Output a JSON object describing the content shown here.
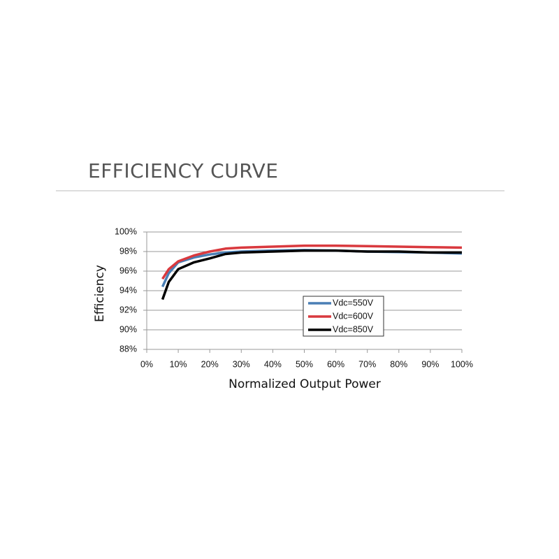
{
  "chart_data": {
    "type": "line",
    "title": "EFFICIENCY CURVE",
    "x_label": "Normalized Output Power",
    "y_label": "Efficiency",
    "x": [
      5,
      7,
      10,
      15,
      20,
      25,
      30,
      40,
      50,
      60,
      70,
      80,
      90,
      100
    ],
    "series": [
      {
        "name": "Vdc=550V",
        "color": "#4a7fb5",
        "values": [
          94.4,
          95.8,
          96.9,
          97.4,
          97.7,
          97.9,
          98.0,
          98.1,
          98.15,
          98.1,
          98.0,
          97.95,
          97.9,
          97.8
        ]
      },
      {
        "name": "Vdc=600V",
        "color": "#d9393e",
        "values": [
          95.2,
          96.2,
          97.0,
          97.6,
          98.0,
          98.3,
          98.4,
          98.5,
          98.6,
          98.6,
          98.55,
          98.5,
          98.45,
          98.4
        ]
      },
      {
        "name": "Vdc=850V",
        "color": "#000000",
        "values": [
          93.1,
          94.9,
          96.2,
          96.9,
          97.3,
          97.75,
          97.9,
          98.0,
          98.1,
          98.1,
          98.0,
          98.0,
          97.9,
          97.9
        ]
      }
    ],
    "xlim": [
      0,
      100
    ],
    "xticks": [
      {
        "value": 0,
        "label": "0%"
      },
      {
        "value": 10,
        "label": "10%"
      },
      {
        "value": 20,
        "label": "20%"
      },
      {
        "value": 30,
        "label": "30%"
      },
      {
        "value": 40,
        "label": "40%"
      },
      {
        "value": 50,
        "label": "50%"
      },
      {
        "value": 60,
        "label": "60%"
      },
      {
        "value": 70,
        "label": "70%"
      },
      {
        "value": 80,
        "label": "80%"
      },
      {
        "value": 90,
        "label": "90%"
      },
      {
        "value": 100,
        "label": "100%"
      }
    ],
    "ylim": [
      88,
      100
    ],
    "yticks": [
      {
        "value": 88,
        "label": "88%"
      },
      {
        "value": 90,
        "label": "90%"
      },
      {
        "value": 92,
        "label": "92%"
      },
      {
        "value": 94,
        "label": "94%"
      },
      {
        "value": 96,
        "label": "96%"
      },
      {
        "value": 98,
        "label": "98%"
      },
      {
        "value": 100,
        "label": "100%"
      }
    ],
    "grid": true,
    "legend": "lower-right"
  }
}
